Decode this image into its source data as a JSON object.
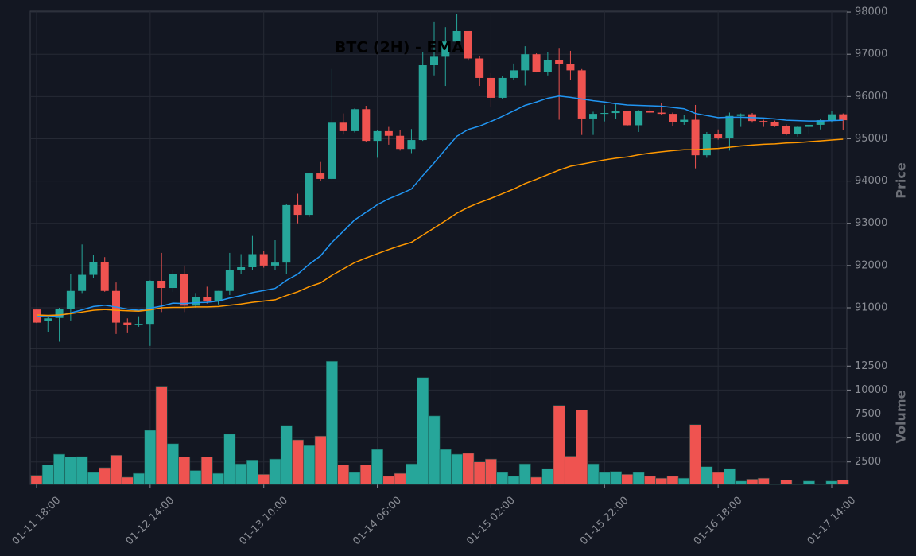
{
  "chart_data": {
    "type": "candlestick",
    "title": "BTC (2H) - EMA",
    "ylabel": "Price",
    "y2label": "Volume",
    "categories": [
      "01-11 18:00",
      null,
      null,
      null,
      null,
      null,
      null,
      null,
      null,
      null,
      "01-12 14:00",
      null,
      null,
      null,
      null,
      null,
      null,
      null,
      null,
      null,
      "01-13 10:00",
      null,
      null,
      null,
      null,
      null,
      null,
      null,
      null,
      null,
      "01-14 06:00",
      null,
      null,
      null,
      null,
      null,
      null,
      null,
      null,
      null,
      "01-15 02:00",
      null,
      null,
      null,
      null,
      null,
      null,
      null,
      null,
      null,
      "01-15 22:00",
      null,
      null,
      null,
      null,
      null,
      null,
      null,
      null,
      null,
      "01-16 18:00",
      null,
      null,
      null,
      null,
      null,
      null,
      null,
      null,
      null,
      "01-17 14:00",
      null
    ],
    "open": [
      90960,
      90680,
      90760,
      90980,
      91400,
      91780,
      92080,
      91400,
      90650,
      90600,
      90620,
      91640,
      91470,
      91800,
      91050,
      91250,
      91150,
      91400,
      91900,
      91960,
      92270,
      92000,
      92070,
      93430,
      93200,
      94180,
      94050,
      95380,
      95180,
      95700,
      94950,
      95180,
      95070,
      94760,
      94970,
      96740,
      96940,
      97300,
      97550,
      96900,
      96440,
      95970,
      96440,
      96620,
      97000,
      96580,
      96860,
      96760,
      96620,
      95480,
      95590,
      95610,
      95650,
      95320,
      95660,
      95620,
      95590,
      95400,
      95450,
      94610,
      95120,
      95020,
      95540,
      95580,
      95420,
      95400,
      95310,
      95120,
      95280,
      95330,
      95440,
      95580
    ],
    "high": [
      90970,
      90800,
      91000,
      91800,
      92500,
      92250,
      92200,
      91600,
      90750,
      90800,
      91650,
      92300,
      91900,
      92000,
      91350,
      91500,
      91400,
      92300,
      92270,
      92700,
      92350,
      92600,
      93450,
      93700,
      94200,
      94450,
      96650,
      95600,
      95720,
      95780,
      95200,
      95280,
      95200,
      95230,
      97050,
      97760,
      97640,
      97950,
      97550,
      96950,
      96550,
      96480,
      96780,
      97190,
      97020,
      97050,
      97150,
      97080,
      96650,
      95640,
      95800,
      95830,
      95660,
      95680,
      95780,
      95850,
      95620,
      95560,
      95800,
      95160,
      95220,
      95620,
      95600,
      95610,
      95450,
      95430,
      95340,
      95300,
      95330,
      95480,
      95650,
      95600
    ],
    "low": [
      90640,
      90430,
      90200,
      90700,
      91350,
      91700,
      91380,
      90380,
      90400,
      90550,
      90100,
      90900,
      91380,
      90900,
      91000,
      91100,
      91080,
      91300,
      91800,
      91900,
      91950,
      91900,
      91800,
      93000,
      93150,
      94000,
      94040,
      95100,
      95150,
      94930,
      94550,
      94860,
      94720,
      94660,
      94950,
      96500,
      96250,
      97200,
      96850,
      96250,
      95750,
      95950,
      96400,
      96260,
      96570,
      96500,
      95450,
      96400,
      95090,
      95090,
      95410,
      95470,
      95300,
      95160,
      95600,
      95560,
      95300,
      95330,
      94300,
      94550,
      94980,
      94720,
      95280,
      95380,
      95280,
      95280,
      95080,
      95050,
      95100,
      95220,
      95380,
      95200
    ],
    "close": [
      90650,
      90750,
      90980,
      91400,
      91780,
      92080,
      91400,
      90650,
      90600,
      90620,
      91640,
      91470,
      91800,
      91050,
      91250,
      91150,
      91400,
      91900,
      91960,
      92270,
      92000,
      92070,
      93430,
      93200,
      94180,
      94050,
      95380,
      95180,
      95700,
      94950,
      95180,
      95070,
      94760,
      94970,
      96740,
      96940,
      97300,
      97550,
      96900,
      96440,
      95970,
      96440,
      96620,
      97000,
      96580,
      96860,
      96760,
      96620,
      95480,
      95590,
      95610,
      95650,
      95320,
      95660,
      95620,
      95590,
      95400,
      95450,
      94610,
      95120,
      95020,
      95540,
      95580,
      95420,
      95400,
      95310,
      95120,
      95280,
      95330,
      95440,
      95580,
      95440
    ],
    "volume": [
      1100,
      2200,
      3300,
      3000,
      3050,
      1400,
      1900,
      3200,
      900,
      1300,
      5800,
      10400,
      4400,
      3000,
      1600,
      3000,
      1300,
      5400,
      2300,
      2700,
      1200,
      2800,
      6300,
      4800,
      4200,
      5200,
      13000,
      2200,
      1400,
      2200,
      3800,
      1000,
      1300,
      2300,
      11300,
      7300,
      3800,
      3300,
      3400,
      2500,
      2800,
      1400,
      1000,
      2300,
      900,
      1800,
      8400,
      3100,
      7900,
      2300,
      1400,
      1500,
      1200,
      1400,
      1000,
      800,
      1000,
      800,
      6400,
      2000,
      1400,
      1800,
      500,
      700,
      800,
      200,
      600,
      200,
      500,
      200,
      500,
      600
    ],
    "up_color": "#26a69a",
    "down_color": "#ef5350",
    "lines": [
      {
        "color": "#2196f3",
        "values": [
          90800,
          90790,
          90810,
          90880,
          90950,
          91030,
          91060,
          91020,
          90970,
          90940,
          90990,
          91040,
          91110,
          91100,
          91120,
          91130,
          91160,
          91230,
          91290,
          91360,
          91410,
          91460,
          91650,
          91800,
          92030,
          92230,
          92550,
          92810,
          93080,
          93260,
          93440,
          93580,
          93690,
          93810,
          94130,
          94430,
          94750,
          95060,
          95220,
          95300,
          95410,
          95530,
          95660,
          95790,
          95870,
          95960,
          96010,
          95980,
          95940,
          95900,
          95870,
          95830,
          95800,
          95790,
          95780,
          95770,
          95740,
          95710,
          95600,
          95550,
          95500,
          95510,
          95510,
          95500,
          95490,
          95470,
          95440,
          95430,
          95420,
          95420,
          95430,
          95440
        ]
      },
      {
        "color": "#ff9800",
        "values": [
          90830,
          90820,
          90830,
          90860,
          90900,
          90940,
          90960,
          90940,
          90930,
          90920,
          90950,
          91000,
          91010,
          91010,
          91020,
          91020,
          91030,
          91060,
          91090,
          91130,
          91160,
          91190,
          91290,
          91380,
          91500,
          91590,
          91770,
          91920,
          92070,
          92180,
          92280,
          92380,
          92470,
          92550,
          92720,
          92890,
          93060,
          93240,
          93380,
          93490,
          93590,
          93700,
          93810,
          93940,
          94040,
          94150,
          94260,
          94350,
          94400,
          94450,
          94500,
          94540,
          94570,
          94620,
          94660,
          94690,
          94720,
          94740,
          94740,
          94760,
          94770,
          94800,
          94830,
          94850,
          94870,
          94880,
          94900,
          94910,
          94930,
          94950,
          94970,
          94990
        ]
      }
    ],
    "ylim": [
      90040,
      98020
    ],
    "yticks": [
      91000,
      92000,
      93000,
      94000,
      95000,
      96000,
      97000,
      98000
    ],
    "vol_ylim": [
      150,
      14350
    ],
    "vol_yticks": [
      2500,
      5000,
      7500,
      10000,
      12500
    ],
    "grid": true
  }
}
